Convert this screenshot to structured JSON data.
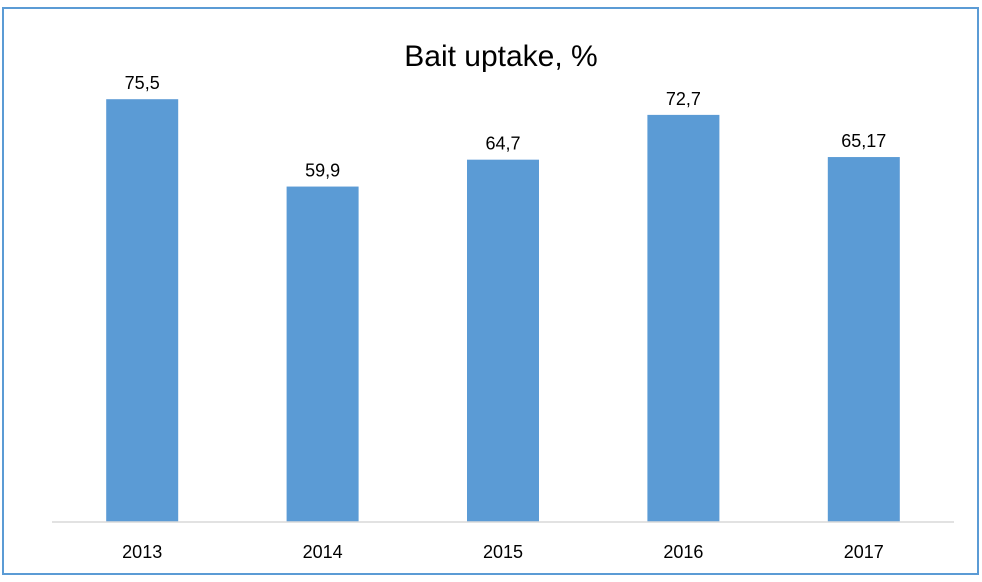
{
  "chart_data": {
    "type": "bar",
    "title": "Bait uptake, %",
    "xlabel": "",
    "ylabel": "",
    "categories": [
      "2013",
      "2014",
      "2015",
      "2016",
      "2017"
    ],
    "values": [
      75.5,
      59.9,
      64.7,
      72.7,
      65.17
    ],
    "value_labels": [
      "75,5",
      "59,9",
      "64,7",
      "72,7",
      "65,17"
    ],
    "ylim": [
      0,
      100
    ],
    "grid": false,
    "legend": "none",
    "colors": {
      "bar": "#5b9bd5",
      "frame": "#5b9bd5",
      "axis": "#d9d9d9"
    }
  }
}
